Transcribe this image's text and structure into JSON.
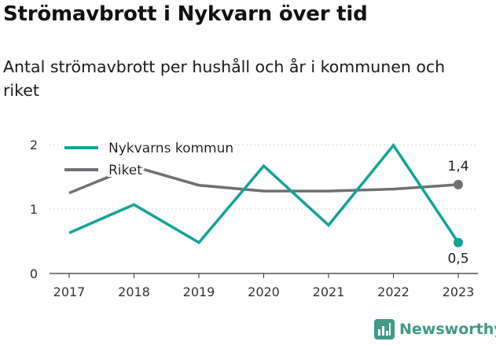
{
  "header": {
    "title": "Strömavbrott i Nykvarn över tid",
    "subtitle": "Antal strömavbrott per hushåll och år i kommunen och riket"
  },
  "brand": {
    "name": "Newsworthy",
    "icon": "newsworthy-logo-icon",
    "color": "#3f9a86"
  },
  "chart_data": {
    "type": "line",
    "title": "Strömavbrott i Nykvarn över tid",
    "subtitle": "Antal strömavbrott per hushåll och år i kommunen och riket",
    "xlabel": "",
    "ylabel": "",
    "x": [
      "2017",
      "2018",
      "2019",
      "2020",
      "2021",
      "2022",
      "2023"
    ],
    "ylim": [
      0,
      2.05
    ],
    "yticks": [
      0,
      1,
      2
    ],
    "grid": "horizontal-dashed",
    "legend_position": "top-left",
    "series": [
      {
        "name": "Nykvarns kommun",
        "color": "#13a397",
        "values": [
          0.63,
          1.07,
          0.48,
          1.67,
          0.75,
          1.99,
          0.48
        ],
        "end_label": "0,5"
      },
      {
        "name": "Riket",
        "color": "#707074",
        "values": [
          1.25,
          1.66,
          1.37,
          1.28,
          1.28,
          1.31,
          1.38
        ],
        "end_label": "1,4"
      }
    ]
  }
}
